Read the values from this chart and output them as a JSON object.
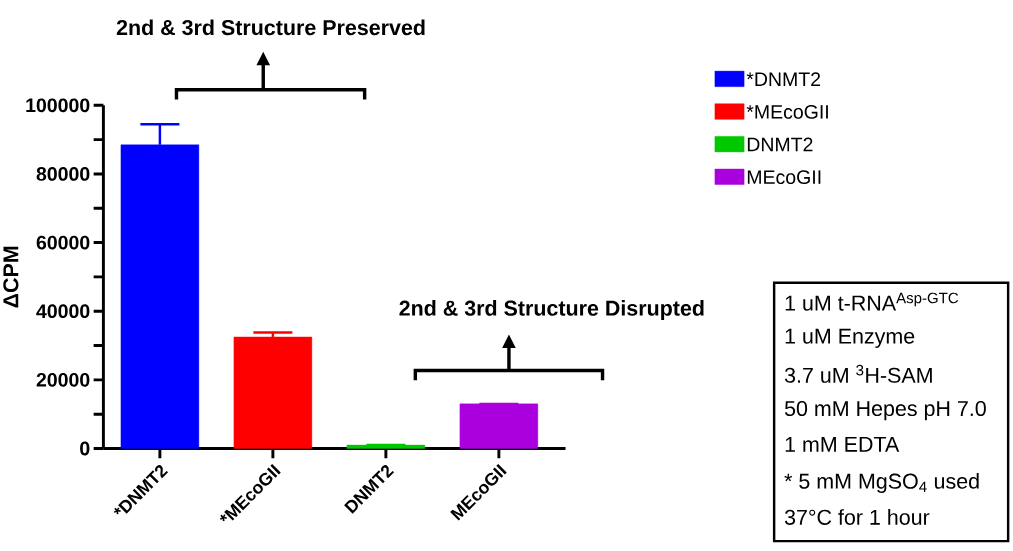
{
  "chart_data": {
    "type": "bar",
    "ylabel": "ΔCPM",
    "categories": [
      "*DNMT2",
      "*MEcoGII",
      "DNMT2",
      "MEcoGII"
    ],
    "series": [
      {
        "name": "*DNMT2",
        "color": "#0000ff",
        "values": [
          88500,
          null,
          null,
          null
        ],
        "errors": [
          6000,
          null,
          null,
          null
        ]
      },
      {
        "name": "*MEcoGII",
        "color": "#ff0000",
        "values": [
          null,
          32500,
          null,
          null
        ],
        "errors": [
          null,
          1300,
          null,
          null
        ]
      },
      {
        "name": "DNMT2",
        "color": "#00c800",
        "values": [
          null,
          null,
          1000,
          null
        ],
        "errors": [
          null,
          null,
          null,
          null
        ]
      },
      {
        "name": "MEcoGII",
        "color": "#aa00dd",
        "values": [
          null,
          null,
          null,
          13000
        ],
        "errors": [
          null,
          null,
          null,
          null
        ]
      }
    ],
    "ylim": [
      0,
      100000
    ],
    "yticks": [
      0,
      {
        "value": 10000,
        "label": null
      },
      20000,
      {
        "value": 30000,
        "label": null
      },
      40000,
      {
        "value": 50000,
        "label": null
      },
      60000,
      {
        "value": 70000,
        "label": null
      },
      80000,
      {
        "value": 90000,
        "label": null
      },
      100000
    ],
    "legend": "top right",
    "annotations": [
      "2nd & 3rd Structure Preserved",
      "2nd & 3rd Structure Disrupted",
      "1 uM t-RNA$^{Asp-GTC}$",
      "1 uM Enzyme",
      "3.7 uM $^{3}$H-SAM",
      "50 mM Hepes pH 7.0",
      "1 mM EDTA",
      "* 5 mM MgSO$_{4}$ used",
      "37°C for 1 hour"
    ]
  }
}
